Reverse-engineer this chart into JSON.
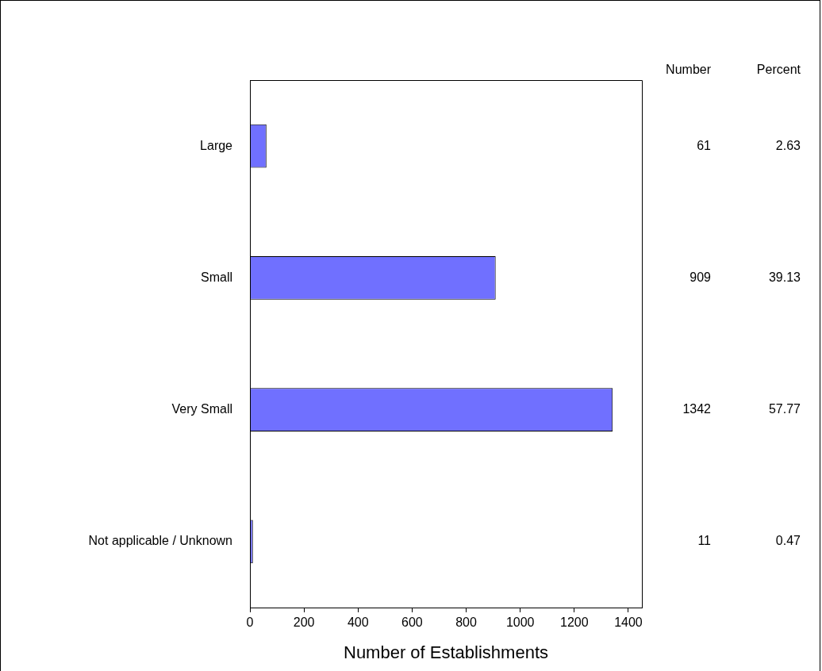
{
  "chart_data": {
    "type": "bar",
    "orientation": "horizontal",
    "xlabel": "Number of Establishments",
    "categories": [
      "Large",
      "Small",
      "Very Small",
      "Not applicable / Unknown"
    ],
    "values": [
      61,
      909,
      1342,
      11
    ],
    "color": "#7070ff",
    "xlim": [
      0,
      1450
    ],
    "xticks": [
      0,
      200,
      400,
      600,
      800,
      1000,
      1200,
      1400
    ],
    "grid": false,
    "legend": false,
    "data_labels": true,
    "annotations": [
      "Number",
      "Percent",
      "2.63",
      "39.13",
      "57.77",
      "0.47"
    ]
  }
}
